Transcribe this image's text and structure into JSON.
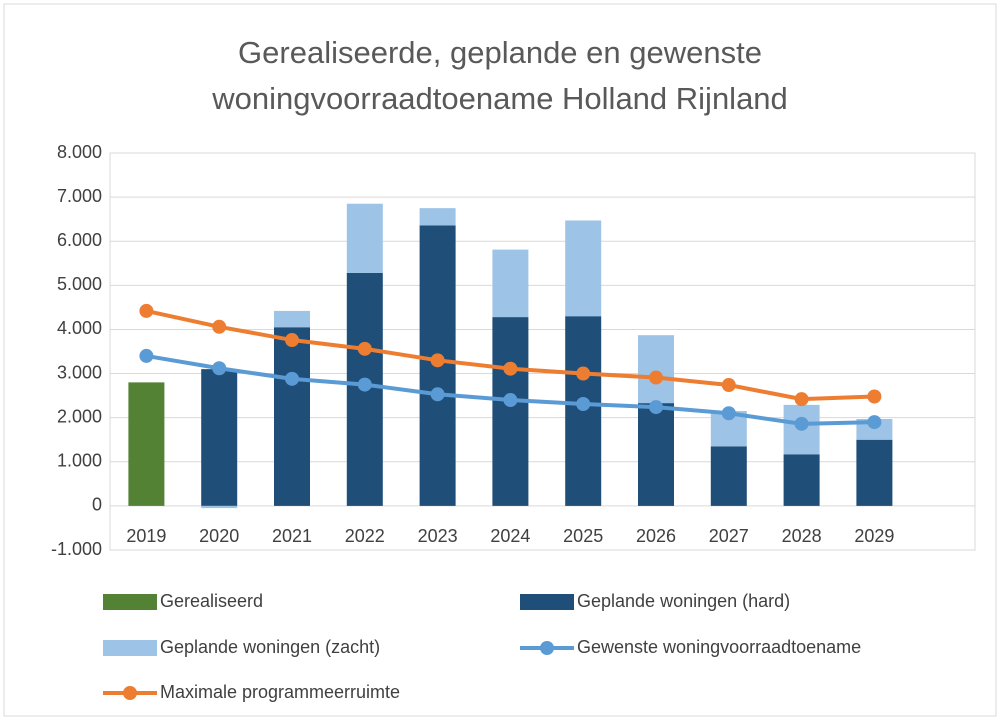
{
  "chart_data": {
    "type": "bar",
    "title": "Gerealiseerde, geplande en gewenste woningvoorraadtoename Holland Rijnland",
    "categories": [
      "2019",
      "2020",
      "2021",
      "2022",
      "2023",
      "2024",
      "2025",
      "2026",
      "2027",
      "2028",
      "2029"
    ],
    "series": [
      {
        "name": "Gerealiseerd",
        "type": "bar",
        "color": "#548235",
        "values": [
          2800,
          null,
          null,
          null,
          null,
          null,
          null,
          null,
          null,
          null,
          null
        ]
      },
      {
        "name": "Geplande woningen (hard)",
        "type": "bar",
        "color": "#1f4e79",
        "values": [
          null,
          3100,
          4050,
          5280,
          6360,
          4280,
          4300,
          2330,
          1350,
          1170,
          1500
        ]
      },
      {
        "name": "Geplande woningen (zacht)",
        "type": "bar",
        "color": "#9dc3e6",
        "values": [
          null,
          -50,
          370,
          1570,
          390,
          1530,
          2170,
          1540,
          800,
          1120,
          470
        ]
      },
      {
        "name": "Gewenste woningvoorraadtoename",
        "type": "line",
        "color": "#5b9bd5",
        "values": [
          3400,
          3120,
          2880,
          2750,
          2530,
          2400,
          2310,
          2240,
          2100,
          1860,
          1900
        ]
      },
      {
        "name": "Maximale programmeerruimte",
        "type": "line",
        "color": "#ed7d31",
        "values": [
          4420,
          4060,
          3760,
          3560,
          3300,
          3110,
          3000,
          2910,
          2740,
          2420,
          2480
        ]
      }
    ],
    "ylim": [
      -1000,
      8000
    ],
    "yticks": [
      {
        "value": -1000,
        "label": "-1.000"
      },
      0,
      {
        "value": 1000,
        "label": "1.000"
      },
      {
        "value": 2000,
        "label": "2.000"
      },
      {
        "value": 3000,
        "label": "3.000"
      },
      {
        "value": 4000,
        "label": "4.000"
      },
      {
        "value": 5000,
        "label": "5.000"
      },
      {
        "value": 6000,
        "label": "6.000"
      },
      {
        "value": 7000,
        "label": "7.000"
      },
      {
        "value": 8000,
        "label": "8.000"
      }
    ],
    "grid": true
  }
}
